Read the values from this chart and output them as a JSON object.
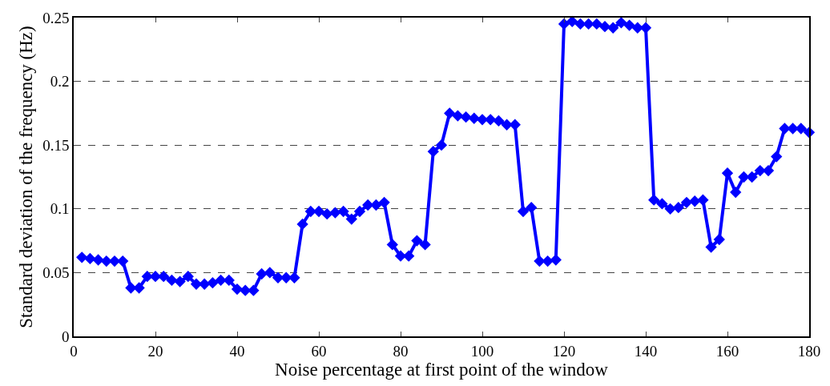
{
  "chart_data": {
    "type": "line",
    "xlabel": "Noise percentage at first point of the window",
    "ylabel": "Standard deviation of the frequency (Hz)",
    "x": [
      2,
      4,
      6,
      8,
      10,
      12,
      14,
      16,
      18,
      20,
      22,
      24,
      26,
      28,
      30,
      32,
      34,
      36,
      38,
      40,
      42,
      44,
      46,
      48,
      50,
      52,
      54,
      56,
      58,
      60,
      62,
      64,
      66,
      68,
      70,
      72,
      74,
      76,
      78,
      80,
      82,
      84,
      86,
      88,
      90,
      92,
      94,
      96,
      98,
      100,
      102,
      104,
      106,
      108,
      110,
      112,
      114,
      116,
      118,
      120,
      122,
      124,
      126,
      128,
      130,
      132,
      134,
      136,
      138,
      140,
      142,
      144,
      146,
      148,
      150,
      152,
      154,
      156,
      158,
      160,
      162,
      164,
      166,
      168,
      170,
      172,
      174,
      176,
      178,
      180
    ],
    "series": [
      {
        "color": "#0000ff",
        "values": [
          0.062,
          0.061,
          0.06,
          0.059,
          0.059,
          0.059,
          0.038,
          0.038,
          0.047,
          0.047,
          0.047,
          0.044,
          0.043,
          0.047,
          0.041,
          0.041,
          0.042,
          0.044,
          0.044,
          0.037,
          0.036,
          0.036,
          0.049,
          0.05,
          0.046,
          0.046,
          0.046,
          0.088,
          0.098,
          0.098,
          0.096,
          0.097,
          0.098,
          0.092,
          0.098,
          0.103,
          0.103,
          0.105,
          0.072,
          0.063,
          0.063,
          0.075,
          0.072,
          0.145,
          0.15,
          0.175,
          0.173,
          0.172,
          0.171,
          0.17,
          0.17,
          0.169,
          0.166,
          0.166,
          0.098,
          0.101,
          0.059,
          0.059,
          0.06,
          0.245,
          0.247,
          0.245,
          0.245,
          0.245,
          0.243,
          0.242,
          0.246,
          0.244,
          0.242,
          0.242,
          0.107,
          0.104,
          0.1,
          0.101,
          0.105,
          0.106,
          0.107,
          0.07,
          0.076,
          0.128,
          0.113,
          0.125,
          0.125,
          0.13,
          0.13,
          0.141,
          0.163,
          0.163,
          0.163,
          0.16
        ]
      }
    ],
    "xlim": [
      0,
      180
    ],
    "xticks": [
      0,
      20,
      40,
      60,
      80,
      100,
      120,
      140,
      160,
      180
    ],
    "ylim": [
      0,
      0.25
    ],
    "yticks": [
      0,
      0.05,
      0.1,
      0.15,
      0.2,
      0.25
    ],
    "grid": "y",
    "marker": "diamond",
    "line_style": "solid",
    "legend": false
  }
}
